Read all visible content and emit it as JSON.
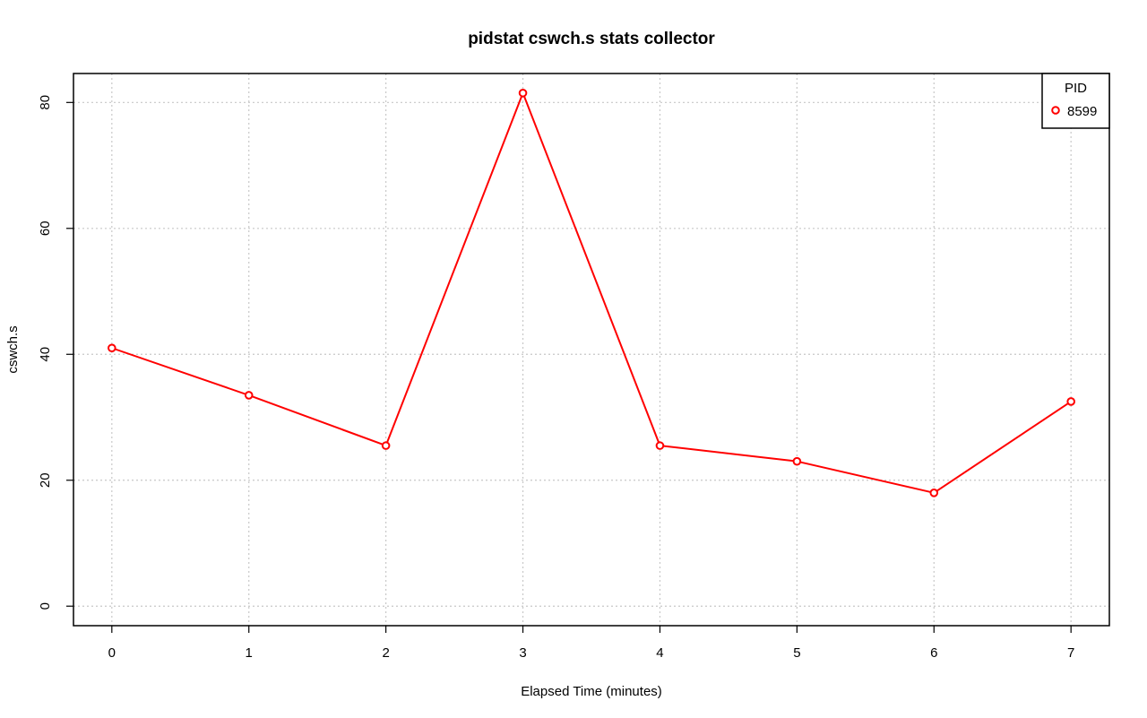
{
  "chart_data": {
    "type": "line",
    "title": "pidstat cswch.s stats collector",
    "xlabel": "Elapsed Time (minutes)",
    "ylabel": "cswch.s",
    "x_ticks": [
      0,
      1,
      2,
      3,
      4,
      5,
      6,
      7
    ],
    "y_ticks": [
      0,
      20,
      40,
      60,
      80
    ],
    "xlim": [
      -0.28,
      7.28
    ],
    "ylim": [
      -3.1,
      84.6
    ],
    "grid": true,
    "legend": {
      "title": "PID",
      "position": "top-right"
    },
    "series": [
      {
        "name": "8599",
        "color": "#ff0000",
        "x": [
          0,
          1,
          2,
          3,
          4,
          5,
          6,
          7
        ],
        "values": [
          41,
          33.5,
          25.5,
          81.5,
          25.5,
          23,
          18,
          32.5
        ]
      }
    ]
  }
}
